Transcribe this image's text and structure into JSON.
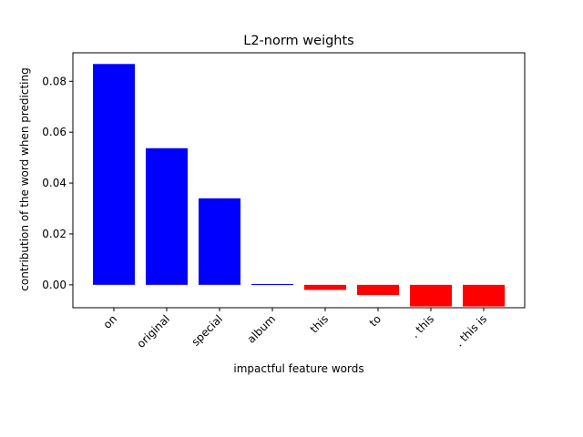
{
  "chart_data": {
    "type": "bar",
    "title": "L2-norm weights",
    "xlabel": "impactful feature words",
    "ylabel": "contribution of the word when predicting",
    "categories": [
      "on",
      "original",
      "special",
      "album",
      "this",
      "to",
      ". this",
      ". this is"
    ],
    "values": [
      0.0868,
      0.0537,
      0.034,
      0.0003,
      -0.002,
      -0.004,
      -0.0085,
      -0.0085
    ],
    "bar_colors": [
      "#0000ff",
      "#0000ff",
      "#0000ff",
      "#0000ff",
      "#ff0000",
      "#ff0000",
      "#ff0000",
      "#ff0000"
    ],
    "ylim": [
      -0.009,
      0.0912
    ],
    "yticks": [
      0.0,
      0.02,
      0.04,
      0.06,
      0.08
    ],
    "ytick_labels": [
      "0.00",
      "0.02",
      "0.04",
      "0.06",
      "0.08"
    ],
    "grid": false,
    "legend": "none"
  }
}
